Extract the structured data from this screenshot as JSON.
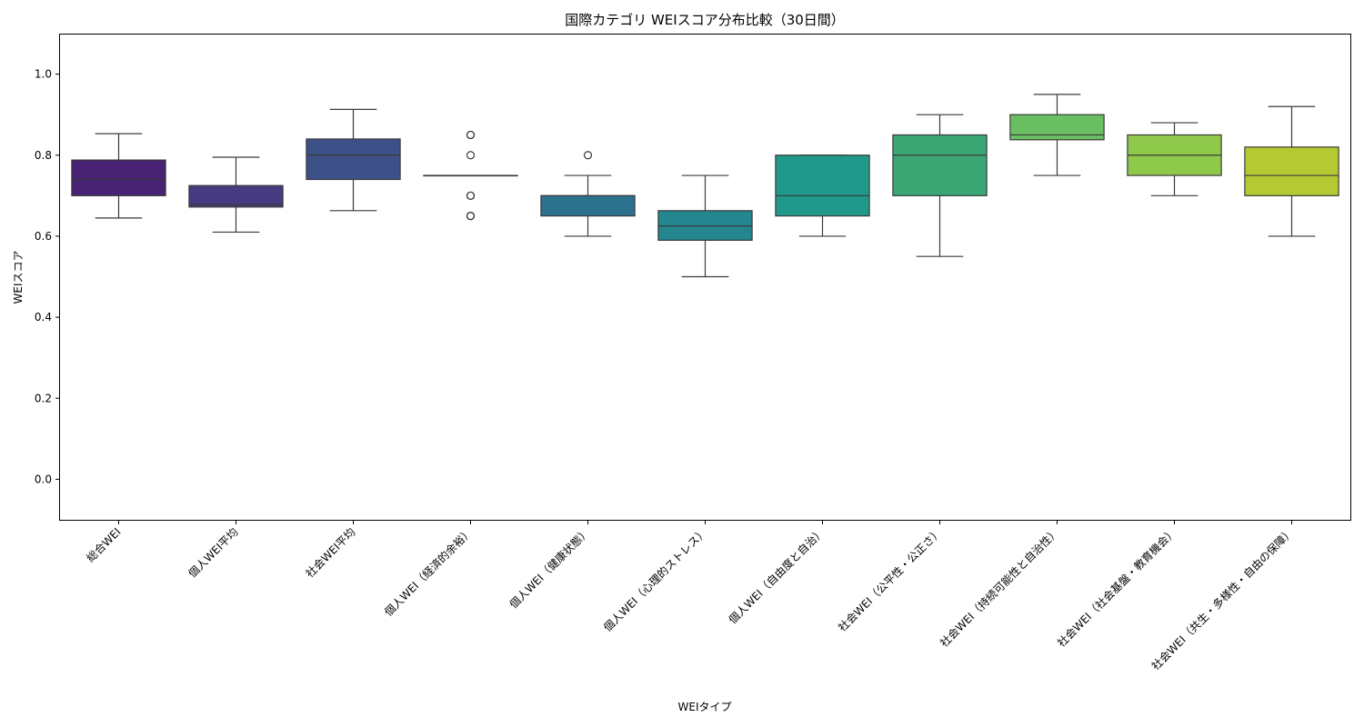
{
  "chart_data": {
    "type": "box",
    "title": "国際カテゴリ WEIスコア分布比較（30日間）",
    "xlabel": "WEIタイプ",
    "ylabel": "WEIスコア",
    "ylim": [
      -0.1,
      1.1
    ],
    "yticks": [
      "0.0",
      "0.2",
      "0.4",
      "0.6",
      "0.8",
      "1.0"
    ],
    "grid": false,
    "categories": [
      "総合WEI",
      "個人WEI平均",
      "社会WEI平均",
      "個人WEI（経済的余裕）",
      "個人WEI（健康状態）",
      "個人WEI（心理的ストレス）",
      "個人WEI（自由度と自治）",
      "社会WEI（公平性・公正さ）",
      "社会WEI（持続可能性と自治性）",
      "社会WEI（社会基盤・教育機会）",
      "社会WEI（共生・多様性・自由の保障）"
    ],
    "boxes": [
      {
        "whisker_low": 0.645,
        "q1": 0.7,
        "median": 0.74,
        "q3": 0.788,
        "whisker_high": 0.853,
        "outliers": [],
        "color": "#482374"
      },
      {
        "whisker_low": 0.61,
        "q1": 0.672,
        "median": 0.678,
        "q3": 0.725,
        "whisker_high": 0.795,
        "outliers": [],
        "color": "#463b80"
      },
      {
        "whisker_low": 0.663,
        "q1": 0.74,
        "median": 0.8,
        "q3": 0.84,
        "whisker_high": 0.913,
        "outliers": [],
        "color": "#3e5088"
      },
      {
        "whisker_low": 0.75,
        "q1": 0.75,
        "median": 0.75,
        "q3": 0.75,
        "whisker_high": 0.75,
        "outliers": [
          0.85,
          0.85,
          0.8,
          0.7,
          0.7,
          0.65,
          0.65
        ],
        "color": "#33638d"
      },
      {
        "whisker_low": 0.6,
        "q1": 0.65,
        "median": 0.7,
        "q3": 0.7,
        "whisker_high": 0.75,
        "outliers": [
          0.8
        ],
        "color": "#2c728e"
      },
      {
        "whisker_low": 0.5,
        "q1": 0.59,
        "median": 0.625,
        "q3": 0.663,
        "whisker_high": 0.75,
        "outliers": [],
        "color": "#24868e"
      },
      {
        "whisker_low": 0.6,
        "q1": 0.65,
        "median": 0.7,
        "q3": 0.8,
        "whisker_high": 0.8,
        "outliers": [],
        "color": "#21998a"
      },
      {
        "whisker_low": 0.55,
        "q1": 0.7,
        "median": 0.8,
        "q3": 0.85,
        "whisker_high": 0.9,
        "outliers": [],
        "color": "#3aa674"
      },
      {
        "whisker_low": 0.75,
        "q1": 0.838,
        "median": 0.85,
        "q3": 0.9,
        "whisker_high": 0.95,
        "outliers": [],
        "color": "#69bf62"
      },
      {
        "whisker_low": 0.7,
        "q1": 0.75,
        "median": 0.8,
        "q3": 0.85,
        "whisker_high": 0.88,
        "outliers": [],
        "color": "#8fc94b"
      },
      {
        "whisker_low": 0.6,
        "q1": 0.7,
        "median": 0.75,
        "q3": 0.82,
        "whisker_high": 0.92,
        "outliers": [],
        "color": "#b5ca32"
      }
    ]
  }
}
